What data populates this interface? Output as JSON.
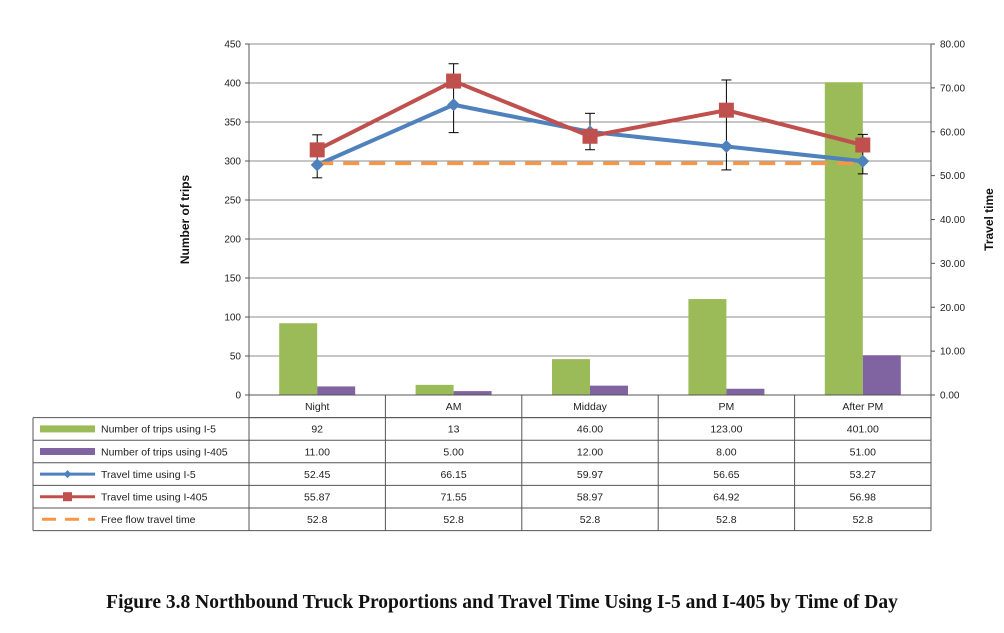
{
  "caption": "Figure 3.8 Northbound Truck Proportions and Travel Time Using I-5 and I-405 by Time of Day",
  "chart_data": {
    "type": "bar",
    "categories": [
      "Night",
      "AM",
      "Midday",
      "PM",
      "After PM"
    ],
    "ylabel": "Number of trips",
    "ylabel_right": "Travel time",
    "ylim": [
      0,
      450
    ],
    "yticks": [
      "0",
      "50",
      "100",
      "150",
      "200",
      "250",
      "300",
      "350",
      "400",
      "450"
    ],
    "ylim_right": [
      0,
      80
    ],
    "yticks_right": [
      "0.00",
      "10.00",
      "20.00",
      "30.00",
      "40.00",
      "50.00",
      "60.00",
      "70.00",
      "80.00"
    ],
    "grid": true,
    "data_table": true,
    "series": [
      {
        "name": "Number of trips using I-5",
        "kind": "bar",
        "axis": "left",
        "color": "#9BBB59",
        "values": [
          92,
          13,
          46,
          123,
          401
        ],
        "labels": [
          "92",
          "13",
          "46.00",
          "123.00",
          "401.00"
        ]
      },
      {
        "name": "Number of trips using I-405",
        "kind": "bar",
        "axis": "left",
        "color": "#8064A2",
        "values": [
          11,
          5,
          12,
          8,
          51
        ],
        "labels": [
          "11.00",
          "5.00",
          "12.00",
          "8.00",
          "51.00"
        ]
      },
      {
        "name": "Travel time using I-5",
        "kind": "line",
        "axis": "right",
        "color": "#4F81BD",
        "marker": "diamond",
        "values": [
          52.45,
          66.15,
          59.97,
          56.65,
          53.27
        ],
        "labels": [
          "52.45",
          "66.15",
          "59.97",
          "56.65",
          "53.27"
        ]
      },
      {
        "name": "Travel time using I-405",
        "kind": "line",
        "axis": "right",
        "color": "#C0504D",
        "marker": "square",
        "values": [
          55.87,
          71.55,
          58.97,
          64.92,
          56.98
        ],
        "labels": [
          "55.87",
          "71.55",
          "58.97",
          "64.92",
          "56.98"
        ],
        "error_low": [
          49.5,
          59.8,
          55.9,
          51.3,
          50.4
        ],
        "error_high": [
          59.3,
          75.5,
          64.2,
          71.8,
          59.4
        ]
      },
      {
        "name": "Free flow travel time",
        "kind": "line",
        "axis": "right",
        "color": "#F79646",
        "dash": "dashed",
        "values": [
          52.8,
          52.8,
          52.8,
          52.8,
          52.8
        ],
        "labels": [
          "52.8",
          "52.8",
          "52.8",
          "52.8",
          "52.8"
        ]
      }
    ]
  }
}
